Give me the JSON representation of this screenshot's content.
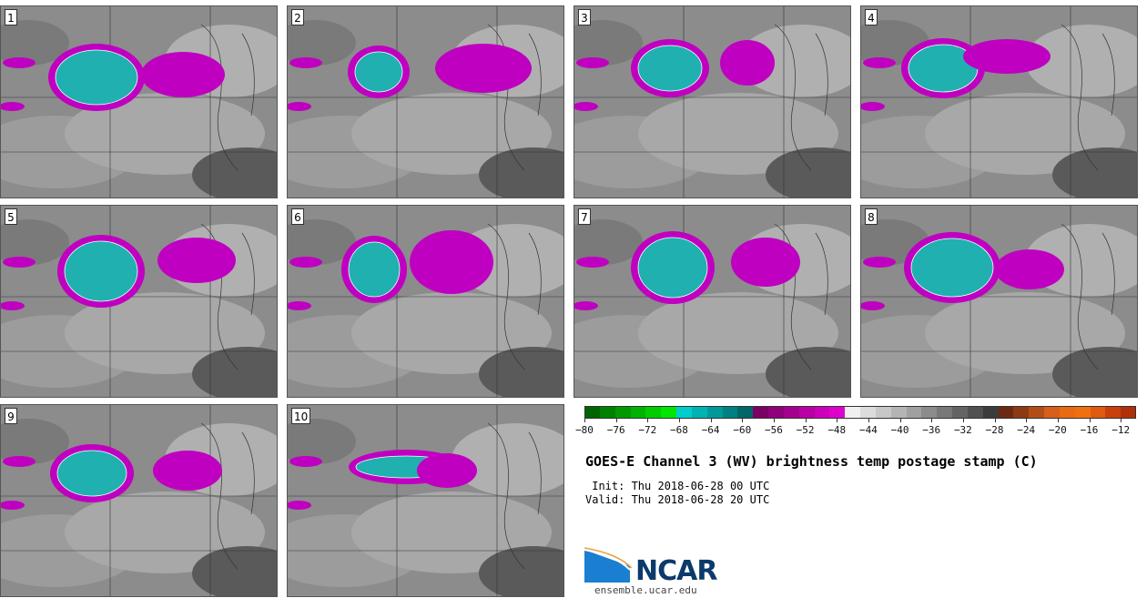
{
  "panels": [
    {
      "label": "1"
    },
    {
      "label": "2"
    },
    {
      "label": "3"
    },
    {
      "label": "4"
    },
    {
      "label": "5"
    },
    {
      "label": "6"
    },
    {
      "label": "7"
    },
    {
      "label": "8"
    },
    {
      "label": "9"
    },
    {
      "label": "10"
    }
  ],
  "colorbar": {
    "colors": [
      "#006400",
      "#008000",
      "#009900",
      "#00b300",
      "#00cc00",
      "#00e600",
      "#00cccc",
      "#00b3b3",
      "#009999",
      "#008080",
      "#006666",
      "#7a0066",
      "#8f007a",
      "#a3008f",
      "#b800a3",
      "#cc00b8",
      "#e000cc",
      "#f0f0f0",
      "#dcdcdc",
      "#c8c8c8",
      "#b4b4b4",
      "#a0a0a0",
      "#8c8c8c",
      "#787878",
      "#646464",
      "#505050",
      "#3c3c3c",
      "#6b2a10",
      "#8b3a14",
      "#b14e18",
      "#d65f1a",
      "#e86a12",
      "#f07010",
      "#e05a10",
      "#c8400c",
      "#b0300a"
    ],
    "tick_labels": [
      "−80",
      "−76",
      "−72",
      "−68",
      "−64",
      "−60",
      "−56",
      "−52",
      "−48",
      "−44",
      "−40",
      "−36",
      "−32",
      "−28",
      "−24",
      "−20",
      "−16",
      "−12"
    ]
  },
  "title": "GOES-E Channel 3 (WV) brightness temp postage stamp (C)",
  "init": " Init: Thu 2018-06-28 00 UTC",
  "valid": "Valid: Thu 2018-06-28 20 UTC",
  "logo": {
    "text": "NCAR",
    "url": "ensemble.ucar.edu"
  }
}
